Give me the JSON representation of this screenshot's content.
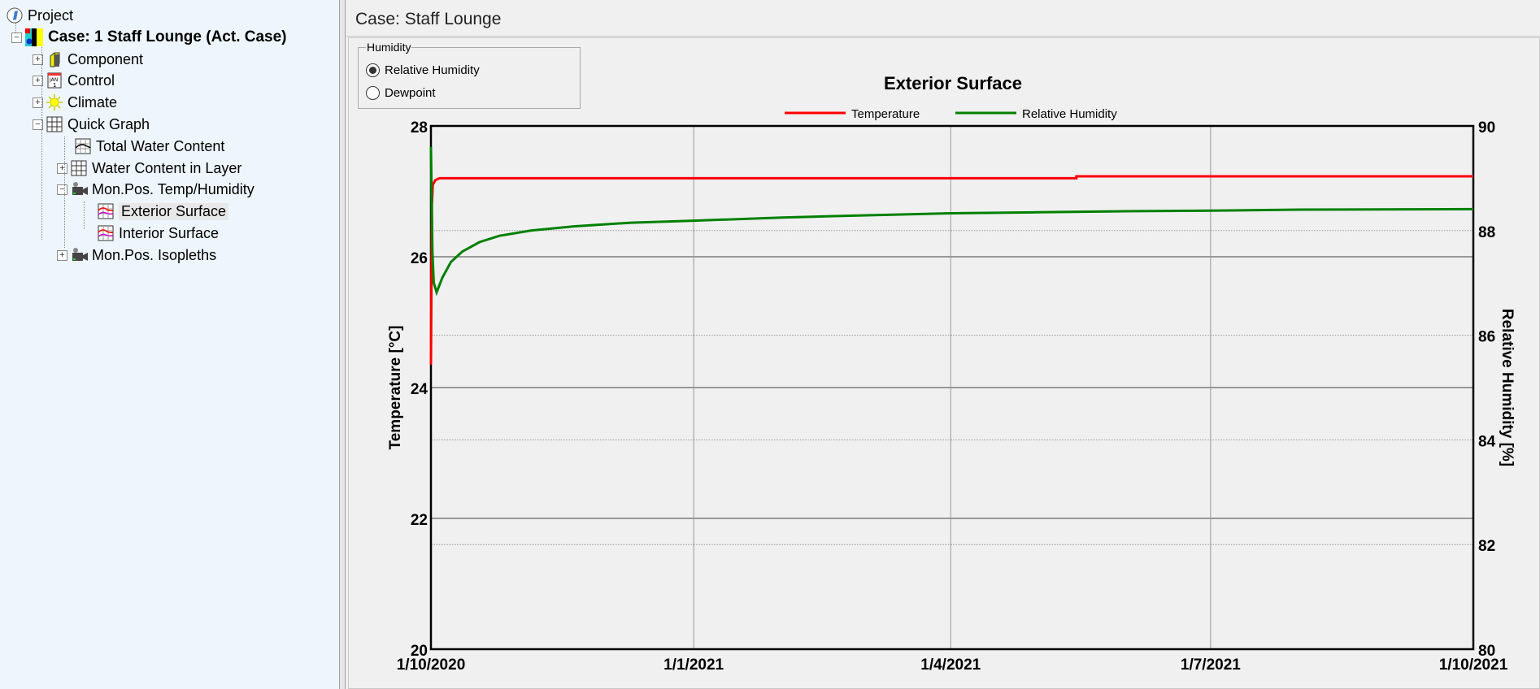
{
  "tree": {
    "items": [
      {
        "label": "Project",
        "icon": "project-icon"
      },
      {
        "label": "Case: 1 Staff Lounge (Act. Case)",
        "icon": "case-icon"
      },
      {
        "label": "Component",
        "icon": "component-icon"
      },
      {
        "label": "Control",
        "icon": "calendar-icon"
      },
      {
        "label": "Climate",
        "icon": "sun-icon"
      },
      {
        "label": "Quick Graph",
        "icon": "grid-icon"
      },
      {
        "label": "Total Water Content",
        "icon": "line-graph-icon"
      },
      {
        "label": "Water Content in Layer",
        "icon": "grid-icon"
      },
      {
        "label": "Mon.Pos. Temp/Humidity",
        "icon": "camera-icon"
      },
      {
        "label": "Exterior Surface",
        "icon": "graph-icon",
        "selected": true
      },
      {
        "label": "Interior Surface",
        "icon": "graph-icon"
      },
      {
        "label": "Mon.Pos. Isopleths",
        "icon": "camera-icon"
      }
    ]
  },
  "header": {
    "case_title": "Case:  Staff Lounge"
  },
  "humidity": {
    "legend": "Humidity",
    "options": [
      {
        "label": "Relative Humidity",
        "checked": true
      },
      {
        "label": "Dewpoint",
        "checked": false
      }
    ]
  },
  "chart_data": {
    "type": "line",
    "title": "Exterior Surface",
    "ylabel": "Temperature [°C]",
    "y2label": "Relative Humidity [%]",
    "xlim": [
      "2020-10-01",
      "2021-10-01"
    ],
    "ylim": [
      20,
      28
    ],
    "y2lim": [
      80,
      90
    ],
    "x_ticks": [
      {
        "date": "2020-10-01",
        "label": "1/10/2020"
      },
      {
        "date": "2021-01-01",
        "label": "1/1/2021"
      },
      {
        "date": "2021-04-01",
        "label": "1/4/2021"
      },
      {
        "date": "2021-07-01",
        "label": "1/7/2021"
      },
      {
        "date": "2021-10-01",
        "label": "1/10/2021"
      }
    ],
    "y_ticks": [
      "20",
      "22",
      "24",
      "26",
      "28"
    ],
    "y2_ticks": [
      "80",
      "82",
      "84",
      "86",
      "88",
      "90"
    ],
    "grid": true,
    "legend_placement": "top",
    "series": [
      {
        "name": "Temperature",
        "axis": "left",
        "color": "#ff0000",
        "points": [
          [
            "2020-10-01T00:00",
            24.35
          ],
          [
            "2020-10-01T08:00",
            26.8
          ],
          [
            "2020-10-01T16:00",
            27.1
          ],
          [
            "2020-10-02T12:00",
            27.17
          ],
          [
            "2020-10-04T00:00",
            27.2
          ],
          [
            "2021-05-15T00:00",
            27.2
          ],
          [
            "2021-05-15T00:01",
            27.23
          ],
          [
            "2021-10-01T00:00",
            27.23
          ]
        ]
      },
      {
        "name": "Relative Humidity",
        "axis": "right",
        "color": "#008000",
        "points": [
          [
            "2020-10-01T00:00",
            89.6
          ],
          [
            "2020-10-01T12:00",
            87.6
          ],
          [
            "2020-10-02T00:00",
            87.0
          ],
          [
            "2020-10-03T00:00",
            86.82
          ],
          [
            "2020-10-05T00:00",
            87.1
          ],
          [
            "2020-10-08T00:00",
            87.4
          ],
          [
            "2020-10-12T00:00",
            87.6
          ],
          [
            "2020-10-18T00:00",
            87.78
          ],
          [
            "2020-10-25T00:00",
            87.9
          ],
          [
            "2020-11-05T00:00",
            88.0
          ],
          [
            "2020-11-20T00:00",
            88.08
          ],
          [
            "2020-12-10T00:00",
            88.15
          ],
          [
            "2021-01-01T00:00",
            88.19
          ],
          [
            "2021-02-01T00:00",
            88.25
          ],
          [
            "2021-03-01T00:00",
            88.29
          ],
          [
            "2021-04-01T00:00",
            88.33
          ],
          [
            "2021-05-01T00:00",
            88.35
          ],
          [
            "2021-06-01T00:00",
            88.37
          ],
          [
            "2021-07-01T00:00",
            88.38
          ],
          [
            "2021-08-01T00:00",
            88.4
          ],
          [
            "2021-10-01T00:00",
            88.41
          ]
        ]
      }
    ]
  }
}
